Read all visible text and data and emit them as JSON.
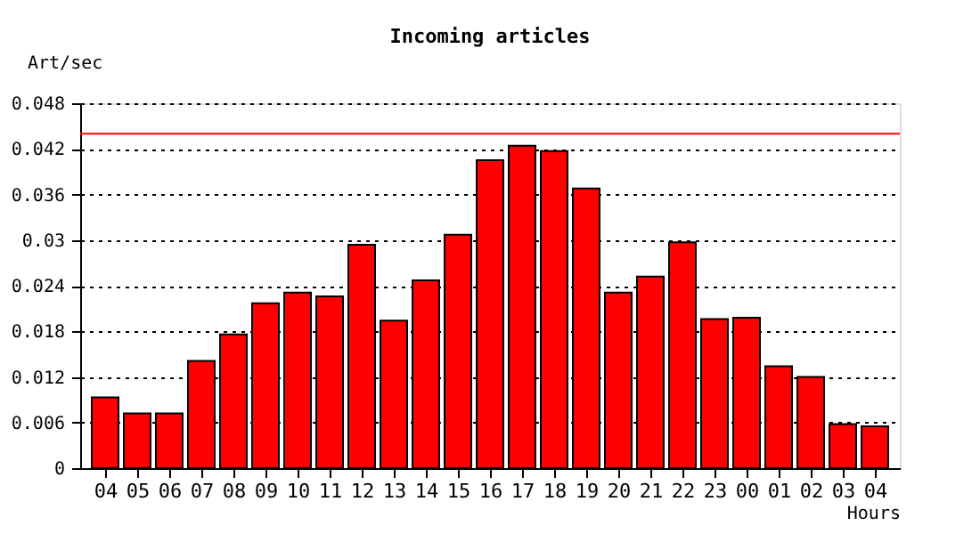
{
  "chart_data": {
    "type": "bar",
    "title": "Incoming articles",
    "xlabel": "Hours",
    "ylabel": "Art/sec",
    "categories": [
      "04",
      "05",
      "06",
      "07",
      "08",
      "09",
      "10",
      "11",
      "12",
      "13",
      "14",
      "15",
      "16",
      "17",
      "18",
      "19",
      "20",
      "21",
      "22",
      "23",
      "00",
      "01",
      "02",
      "03",
      "04"
    ],
    "values": [
      0.0093,
      0.0072,
      0.0072,
      0.0141,
      0.0176,
      0.0217,
      0.0231,
      0.0226,
      0.0294,
      0.0194,
      0.0247,
      0.0307,
      0.0405,
      0.0424,
      0.0417,
      0.0368,
      0.0231,
      0.0252,
      0.0297,
      0.0196,
      0.0198,
      0.0134,
      0.012,
      0.0058,
      0.0055
    ],
    "color": "#ff0000",
    "ylim": [
      0,
      0.048
    ],
    "yticks": [
      0,
      0.006,
      0.012,
      0.018,
      0.024,
      0.03,
      0.036,
      0.042,
      0.048
    ],
    "grid": "y",
    "ref_lines": [
      {
        "axis": "y",
        "value": 0.044,
        "color": "#ff0000",
        "line_style": "solid"
      }
    ]
  }
}
